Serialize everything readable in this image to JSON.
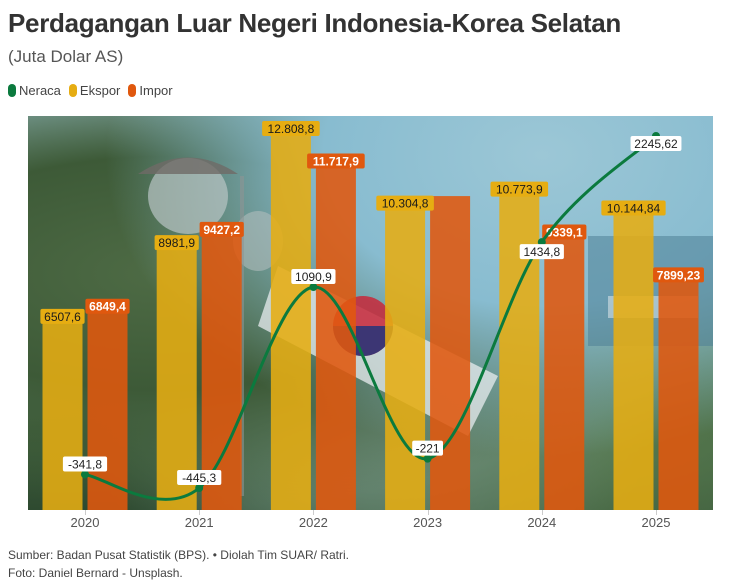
{
  "header": {
    "title": "Perdagangan Luar Negeri Indonesia-Korea Selatan",
    "subtitle": "(Juta Dolar AS)"
  },
  "legend": [
    {
      "label": "Neraca",
      "color": "#0b7a3e"
    },
    {
      "label": "Ekspor",
      "color": "#e6ad12"
    },
    {
      "label": "Impor",
      "color": "#e0580e"
    }
  ],
  "footer": {
    "source": "Sumber: Badan Pusat Statistik (BPS). • Diolah Tim SUAR/ Ratri.",
    "photo": "Foto: Daniel Bernard - Unsplash."
  },
  "chart_data": {
    "type": "bar",
    "title": "Perdagangan Luar Negeri Indonesia-Korea Selatan",
    "subtitle": "(Juta Dolar AS)",
    "xlabel": "",
    "ylabel": "",
    "categories": [
      "2020",
      "2021",
      "2022",
      "2023",
      "2024",
      "2025"
    ],
    "series": [
      {
        "name": "Ekspor",
        "type": "bar",
        "color": "#e6ad12",
        "values": [
          6507.6,
          8981.9,
          12808.8,
          10304.8,
          10773.9,
          10144.84
        ],
        "labels": [
          "6507,6",
          "8981,9",
          "12.808,8",
          "10.304,8",
          "10.773,9",
          "10.144,84"
        ]
      },
      {
        "name": "Impor",
        "type": "bar",
        "color": "#e0580e",
        "values": [
          6849.4,
          9427.2,
          11717.9,
          10525.8,
          9339.1,
          7899.23
        ],
        "labels": [
          "6849,4",
          "9427,2",
          "11.717,9",
          "",
          "9339,1",
          "7899,23"
        ]
      },
      {
        "name": "Neraca",
        "type": "line",
        "color": "#0b7a3e",
        "values": [
          -341.8,
          -445.3,
          1090.9,
          -221,
          1434.8,
          2245.62
        ],
        "labels": [
          "-341,8",
          "-445,3",
          "1090,9",
          "-221",
          "1434,8",
          "2245,62"
        ]
      }
    ],
    "ylim": [
      0,
      13200
    ],
    "grid": false,
    "legend_position": "top-left",
    "background": "photo (Korean flag, street lamps, pine trees)"
  }
}
